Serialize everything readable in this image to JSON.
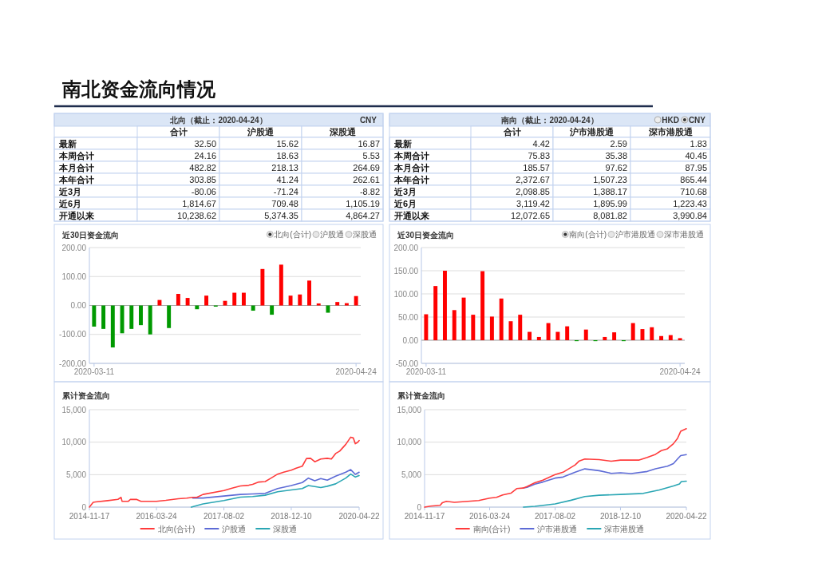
{
  "chart_data": [
    {
      "type": "other",
      "title": "南北资金流向情况"
    },
    {
      "type": "other",
      "title": "北向（截止：2020-04-24）",
      "annotations": [
        "CNY"
      ],
      "categories": [
        "合计",
        "沪股通",
        "深股通"
      ],
      "y_categories": [
        "最新",
        "本周合计",
        "本月合计",
        "本年合计",
        "近3月",
        "近6月",
        "开通以来"
      ],
      "cell_labels": [
        [
          "32.50",
          "15.62",
          "16.87"
        ],
        [
          "24.16",
          "18.63",
          "5.53"
        ],
        [
          "482.82",
          "218.13",
          "264.69"
        ],
        [
          "303.85",
          "41.24",
          "262.61"
        ],
        [
          "-80.06",
          "-71.24",
          "-8.82"
        ],
        [
          "1,814.67",
          "709.48",
          "1,105.19"
        ],
        [
          "10,238.62",
          "5,374.35",
          "4,864.27"
        ]
      ]
    },
    {
      "type": "other",
      "title": "南向（截止：2020-04-24）",
      "annotations": [
        "HKD",
        "CNY"
      ],
      "categories": [
        "合计",
        "沪市港股通",
        "深市港股通"
      ],
      "y_categories": [
        "最新",
        "本周合计",
        "本月合计",
        "本年合计",
        "近3月",
        "近6月",
        "开通以来"
      ],
      "cell_labels": [
        [
          "4.42",
          "2.59",
          "1.83"
        ],
        [
          "75.83",
          "35.38",
          "40.45"
        ],
        [
          "185.57",
          "97.62",
          "87.95"
        ],
        [
          "2,372.67",
          "1,507.23",
          "865.44"
        ],
        [
          "2,098.85",
          "1,388.17",
          "710.68"
        ],
        [
          "3,119.42",
          "1,895.99",
          "1,223.43"
        ],
        [
          "12,072.65",
          "8,081.82",
          "3,990.84"
        ]
      ]
    },
    {
      "type": "bar",
      "title": "近30日资金流向",
      "annotations": [
        "北向(合计)",
        "沪股通",
        "深股通"
      ],
      "categories": [
        "2020-03-11",
        null,
        null,
        null,
        null,
        null,
        null,
        null,
        null,
        null,
        null,
        null,
        null,
        null,
        null,
        null,
        null,
        null,
        null,
        null,
        null,
        null,
        null,
        null,
        null,
        null,
        null,
        null,
        "2020-04-24"
      ],
      "values": [
        -73,
        -81,
        -145,
        -96,
        -81,
        -68,
        -100,
        19,
        -78,
        40,
        26,
        -13,
        34,
        -4,
        16,
        44,
        44,
        -18,
        126,
        -32,
        141,
        34,
        38,
        86,
        7,
        -25,
        12,
        8,
        32.5
      ],
      "colors": [
        "#009900",
        "#009900",
        "#009900",
        "#009900",
        "#009900",
        "#009900",
        "#009900",
        "#ff0000",
        "#009900",
        "#ff0000",
        "#ff0000",
        "#009900",
        "#ff0000",
        "#009900",
        "#ff0000",
        "#ff0000",
        "#ff0000",
        "#009900",
        "#ff0000",
        "#009900",
        "#ff0000",
        "#ff0000",
        "#ff0000",
        "#ff0000",
        "#ff0000",
        "#009900",
        "#ff0000",
        "#ff0000",
        "#ff0000"
      ],
      "ylim": [
        -200,
        200
      ],
      "yticks": [
        {
          "value": -200,
          "label": "-200.00"
        },
        {
          "value": -100,
          "label": "-100.00"
        },
        {
          "value": 0,
          "label": "0.00"
        },
        {
          "value": 100,
          "label": "100.00"
        },
        {
          "value": 200,
          "label": "200.00"
        }
      ],
      "grid": "y"
    },
    {
      "type": "bar",
      "title": "近30日资金流向",
      "annotations": [
        "南向(合计)",
        "沪市港股通",
        "深市港股通"
      ],
      "categories": [
        "2020-03-11",
        null,
        null,
        null,
        null,
        null,
        null,
        null,
        null,
        null,
        null,
        null,
        null,
        null,
        null,
        null,
        null,
        null,
        null,
        null,
        null,
        null,
        null,
        null,
        null,
        null,
        null,
        "2020-04-24"
      ],
      "values": [
        56,
        117,
        150,
        65,
        92,
        55,
        149,
        51,
        90,
        41,
        55,
        18,
        7,
        37,
        18,
        30,
        -2,
        23,
        -2,
        7,
        17,
        -2,
        37,
        24,
        28,
        9,
        11,
        4.42
      ],
      "colors": [
        "#ff0000",
        "#ff0000",
        "#ff0000",
        "#ff0000",
        "#ff0000",
        "#ff0000",
        "#ff0000",
        "#ff0000",
        "#ff0000",
        "#ff0000",
        "#ff0000",
        "#ff0000",
        "#ff0000",
        "#ff0000",
        "#ff0000",
        "#ff0000",
        "#009900",
        "#ff0000",
        "#009900",
        "#ff0000",
        "#ff0000",
        "#009900",
        "#ff0000",
        "#ff0000",
        "#ff0000",
        "#ff0000",
        "#ff0000",
        "#ff0000"
      ],
      "ylim": [
        -50,
        200
      ],
      "yticks": [
        {
          "value": -50,
          "label": "-50.00"
        },
        {
          "value": 0,
          "label": "0.00"
        },
        {
          "value": 50,
          "label": "50.00"
        },
        {
          "value": 100,
          "label": "100.00"
        },
        {
          "value": 150,
          "label": "150.00"
        },
        {
          "value": 200,
          "label": "200.00"
        }
      ],
      "grid": "y"
    },
    {
      "type": "line",
      "title": "累计资金流向",
      "legend": "bottom",
      "grid": "y",
      "xlim": [
        "2014-11-17",
        "2020-04-22"
      ],
      "xticks": [
        "2014-11-17",
        "2016-03-24",
        "2017-08-02",
        "2018-12-10",
        "2020-04-22"
      ],
      "ylim": [
        0,
        15000
      ],
      "yticks": [
        {
          "value": 0,
          "label": "0"
        },
        {
          "value": 5000,
          "label": "5,000"
        },
        {
          "value": 10000,
          "label": "10,000"
        },
        {
          "value": 15000,
          "label": "15,000"
        }
      ],
      "series": [
        {
          "name": "北向(合计)",
          "color": "#ff3b3b",
          "x": [
            "2014-11-17",
            "2014-12-15",
            "2015-01-01",
            "2015-04-01",
            "2015-06-15",
            "2015-07-08",
            "2015-07-15",
            "2015-08-31",
            "2015-09-15",
            "2015-11-01",
            "2015-12-01",
            "2016-03-24",
            "2016-06-01",
            "2016-09-01",
            "2016-11-01",
            "2016-12-15",
            "2017-01-15",
            "2017-03-01",
            "2017-08-02",
            "2017-10-01",
            "2017-12-01",
            "2018-02-01",
            "2018-03-01",
            "2018-04-15",
            "2018-06-01",
            "2018-07-15",
            "2018-09-01",
            "2018-10-15",
            "2018-12-10",
            "2019-01-15",
            "2019-03-01",
            "2019-04-01",
            "2019-05-01",
            "2019-06-01",
            "2019-07-15",
            "2019-09-01",
            "2019-10-01",
            "2019-11-01",
            "2019-12-01",
            "2020-01-15",
            "2020-02-20",
            "2020-03-10",
            "2020-03-25",
            "2020-04-10",
            "2020-04-22"
          ],
          "values": [
            0,
            730,
            800,
            1000,
            1200,
            1500,
            900,
            900,
            1200,
            1180,
            900,
            900,
            1050,
            1300,
            1380,
            1500,
            1500,
            1950,
            2560,
            2930,
            3250,
            3370,
            3500,
            3860,
            3940,
            4470,
            5080,
            5370,
            5690,
            5980,
            6300,
            7480,
            7520,
            6990,
            7400,
            7520,
            7400,
            8250,
            8620,
            9670,
            10770,
            10650,
            9760,
            9960,
            10240
          ]
        },
        {
          "name": "沪股通",
          "color": "#5d6bd6",
          "x": [
            "2016-12-15",
            "2017-03-01",
            "2017-08-02",
            "2017-12-01",
            "2018-03-01",
            "2018-06-01",
            "2018-09-01",
            "2018-12-10",
            "2019-03-01",
            "2019-04-15",
            "2019-06-01",
            "2019-07-15",
            "2019-09-01",
            "2019-11-01",
            "2020-01-15",
            "2020-02-20",
            "2020-03-25",
            "2020-04-22"
          ],
          "values": [
            1400,
            1400,
            1700,
            1950,
            2030,
            2110,
            2850,
            3330,
            3780,
            4470,
            4070,
            4390,
            4150,
            4760,
            5370,
            5770,
            5040,
            5370
          ]
        },
        {
          "name": "深股通",
          "color": "#2aa6b4",
          "x": [
            "2016-12-05",
            "2017-03-01",
            "2017-08-02",
            "2017-12-01",
            "2018-03-01",
            "2018-06-01",
            "2018-09-01",
            "2018-12-10",
            "2019-03-01",
            "2019-04-15",
            "2019-06-01",
            "2019-07-15",
            "2019-09-01",
            "2019-11-01",
            "2020-01-15",
            "2020-02-20",
            "2020-03-25",
            "2020-04-22"
          ],
          "values": [
            0,
            490,
            1020,
            1540,
            1630,
            1830,
            2360,
            2640,
            2850,
            3330,
            3170,
            3010,
            3210,
            3580,
            4470,
            5080,
            4630,
            4860
          ]
        }
      ]
    },
    {
      "type": "line",
      "title": "累计资金流向",
      "legend": "bottom",
      "grid": "y",
      "xlim": [
        "2014-11-17",
        "2020-04-22"
      ],
      "xticks": [
        "2014-11-17",
        "2016-03-24",
        "2017-08-02",
        "2018-12-10",
        "2020-04-22"
      ],
      "ylim": [
        0,
        15000
      ],
      "yticks": [
        {
          "value": 0,
          "label": "0"
        },
        {
          "value": 5000,
          "label": "5,000"
        },
        {
          "value": 10000,
          "label": "10,000"
        },
        {
          "value": 15000,
          "label": "15,000"
        }
      ],
      "series": [
        {
          "name": "南向(合计)",
          "color": "#ff3b3b",
          "x": [
            "2014-11-17",
            "2015-01-01",
            "2015-03-15",
            "2015-04-01",
            "2015-05-01",
            "2015-07-01",
            "2016-01-01",
            "2016-03-24",
            "2016-05-15",
            "2016-07-01",
            "2016-09-01",
            "2016-10-15",
            "2016-12-01",
            "2017-01-01",
            "2017-03-01",
            "2017-05-01",
            "2017-08-02",
            "2017-10-01",
            "2018-01-01",
            "2018-02-01",
            "2018-03-15",
            "2018-07-01",
            "2018-10-01",
            "2018-12-10",
            "2019-05-01",
            "2019-07-01",
            "2019-09-01",
            "2019-10-15",
            "2019-12-01",
            "2020-01-15",
            "2020-02-15",
            "2020-03-10",
            "2020-04-22"
          ],
          "values": [
            0,
            160,
            280,
            690,
            890,
            730,
            1020,
            1380,
            1500,
            1870,
            2150,
            2850,
            2930,
            3170,
            3740,
            4150,
            5000,
            5370,
            6500,
            7110,
            7400,
            7320,
            7070,
            7240,
            7240,
            7640,
            8130,
            8700,
            8980,
            9760,
            10570,
            11670,
            12070
          ]
        },
        {
          "name": "沪市港股通",
          "color": "#5d6bd6",
          "x": [
            "2016-12-01",
            "2017-01-01",
            "2017-03-01",
            "2017-05-01",
            "2017-08-02",
            "2017-10-01",
            "2018-01-01",
            "2018-03-15",
            "2018-07-01",
            "2018-10-01",
            "2018-12-10",
            "2019-03-01",
            "2019-07-01",
            "2019-09-01",
            "2019-12-01",
            "2020-01-15",
            "2020-02-15",
            "2020-03-10",
            "2020-04-22"
          ],
          "values": [
            2930,
            3050,
            3540,
            3860,
            4470,
            4630,
            5370,
            5890,
            5610,
            5200,
            5280,
            5160,
            5490,
            5890,
            6300,
            6710,
            7400,
            7930,
            8080
          ]
        },
        {
          "name": "深市港股通",
          "color": "#2aa6b4",
          "x": [
            "2016-12-05",
            "2017-03-01",
            "2017-08-02",
            "2017-12-01",
            "2018-03-15",
            "2018-07-01",
            "2018-12-10",
            "2019-06-01",
            "2019-10-01",
            "2020-01-15",
            "2020-03-01",
            "2020-03-15",
            "2020-04-22"
          ],
          "values": [
            0,
            120,
            490,
            1060,
            1630,
            1830,
            1950,
            2110,
            2640,
            3250,
            3580,
            3940,
            3990
          ]
        }
      ]
    }
  ]
}
